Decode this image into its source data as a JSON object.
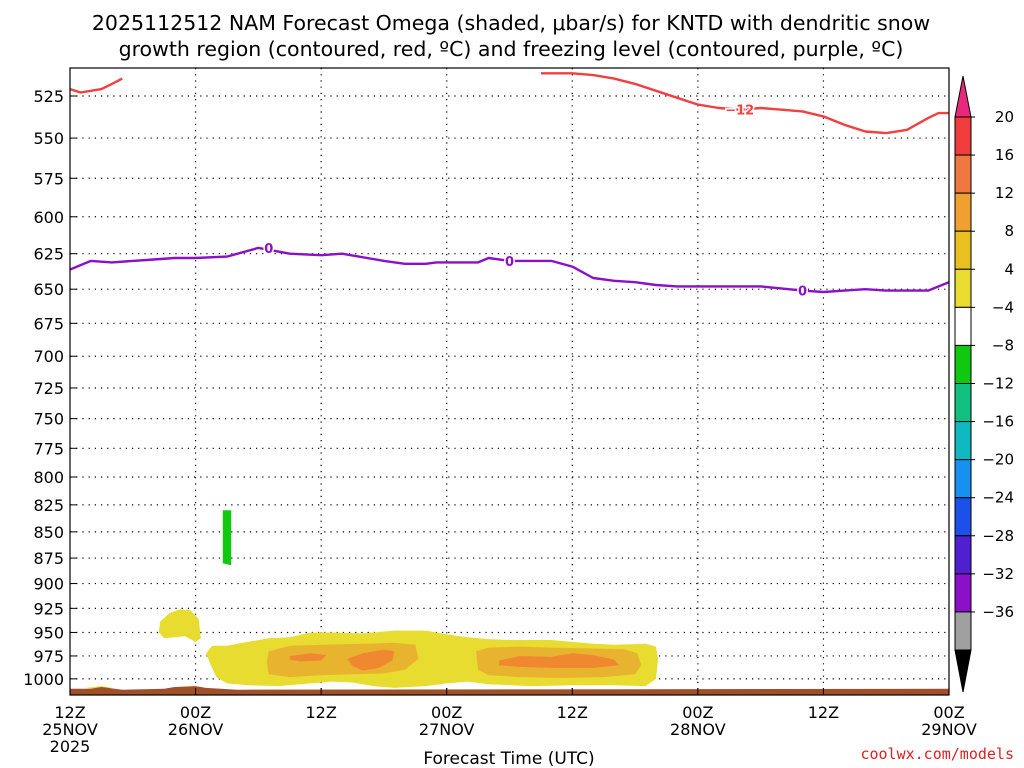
{
  "chart_data": {
    "type": "heatmap",
    "title_line1": "2025112512 NAM Forecast Omega (shaded, μbar/s) for KNTD with dendritic snow",
    "title_line2": "growth region (contoured, red, ºC) and freezing level (contoured, purple, ºC)",
    "xlabel": "Forecast Time (UTC)",
    "ylabel": "",
    "credit": "coolwx.com/models",
    "yaxis": {
      "scale": "log",
      "inverted": true,
      "range_hPa": [
        509,
        1018
      ]
    },
    "yticks": [
      525,
      550,
      575,
      600,
      625,
      650,
      675,
      700,
      725,
      750,
      775,
      800,
      825,
      850,
      875,
      900,
      925,
      950,
      975,
      1000
    ],
    "xaxis": {
      "range_hours": [
        0,
        84
      ]
    },
    "xticks": [
      {
        "hour": 0,
        "lines": [
          "12Z",
          "25NOV",
          "2025"
        ]
      },
      {
        "hour": 12,
        "lines": [
          "00Z",
          "26NOV"
        ]
      },
      {
        "hour": 24,
        "lines": [
          "12Z"
        ]
      },
      {
        "hour": 36,
        "lines": [
          "00Z",
          "27NOV"
        ]
      },
      {
        "hour": 48,
        "lines": [
          "12Z"
        ]
      },
      {
        "hour": 60,
        "lines": [
          "00Z",
          "28NOV"
        ]
      },
      {
        "hour": 72,
        "lines": [
          "12Z"
        ]
      },
      {
        "hour": 84,
        "lines": [
          "00Z",
          "29NOV"
        ]
      }
    ],
    "grid": true,
    "colorbar": {
      "levels": [
        "20",
        "16",
        "12",
        "8",
        "4",
        "−4",
        "−8",
        "−12",
        "−16",
        "−20",
        "−24",
        "−28",
        "−32",
        "−36"
      ],
      "top_arrow_color": "#e8287c",
      "bottom_arrow_color": "#000000",
      "bins": [
        "#f03c3c",
        "#f07840",
        "#f0a030",
        "#e8c020",
        "#e8dc30",
        "#ffffff",
        "#10c810",
        "#10c080",
        "#10b8c0",
        "#1890f0",
        "#1c50e8",
        "#5020d0",
        "#8c10c8",
        "#a0a0a0"
      ]
    },
    "red_isotherm": {
      "label": "−12",
      "color": "#f04040",
      "segments": [
        [
          [
            0,
            521
          ],
          [
            1,
            523
          ],
          [
            2,
            522
          ],
          [
            3,
            521
          ],
          [
            4,
            518
          ],
          [
            5,
            515
          ]
        ],
        [
          [
            45,
            512
          ],
          [
            46,
            512
          ],
          [
            48,
            512
          ],
          [
            50,
            513
          ],
          [
            52,
            515
          ],
          [
            54,
            518
          ],
          [
            56,
            522
          ],
          [
            58,
            526
          ],
          [
            60,
            530
          ],
          [
            62,
            532
          ],
          [
            64,
            533
          ],
          [
            66,
            532
          ],
          [
            68,
            533
          ],
          [
            70,
            534
          ],
          [
            72,
            537
          ],
          [
            74,
            542
          ],
          [
            76,
            546
          ],
          [
            78,
            547
          ],
          [
            80,
            545
          ],
          [
            82,
            538
          ],
          [
            83,
            535
          ],
          [
            84,
            535
          ]
        ]
      ]
    },
    "freezing_level": {
      "label": "0",
      "color": "#8c10c8",
      "points": [
        [
          0,
          636
        ],
        [
          2,
          630
        ],
        [
          4,
          631
        ],
        [
          6,
          630
        ],
        [
          8,
          629
        ],
        [
          10,
          628
        ],
        [
          12,
          628
        ],
        [
          15,
          627
        ],
        [
          18,
          621
        ],
        [
          21,
          625
        ],
        [
          24,
          626
        ],
        [
          26,
          625
        ],
        [
          30,
          630
        ],
        [
          32,
          632
        ],
        [
          34,
          632
        ],
        [
          35,
          631
        ],
        [
          37,
          631
        ],
        [
          39,
          631
        ],
        [
          40,
          628
        ],
        [
          42,
          630
        ],
        [
          44,
          630
        ],
        [
          46,
          630
        ],
        [
          48,
          634
        ],
        [
          50,
          642
        ],
        [
          52,
          644
        ],
        [
          54,
          645
        ],
        [
          56,
          647
        ],
        [
          58,
          648
        ],
        [
          62,
          648
        ],
        [
          64,
          648
        ],
        [
          66,
          648
        ],
        [
          70,
          651
        ],
        [
          72,
          652
        ],
        [
          74,
          651
        ],
        [
          76,
          650
        ],
        [
          78,
          651
        ],
        [
          80,
          651
        ],
        [
          82,
          651
        ],
        [
          84,
          645
        ]
      ]
    },
    "shaded_regions": [
      {
        "level_min": 4,
        "level_max": 8,
        "color": "#e8dc30",
        "polygon": [
          [
            8.6,
            939
          ],
          [
            9.5,
            930
          ],
          [
            10.5,
            926
          ],
          [
            11.5,
            927
          ],
          [
            12.3,
            936
          ],
          [
            12.5,
            956
          ],
          [
            12,
            960
          ],
          [
            11,
            954
          ],
          [
            9,
            956
          ],
          [
            8.5,
            950
          ]
        ]
      },
      {
        "level_min": 4,
        "level_max": 8,
        "color": "#e8dc30",
        "polygon": [
          [
            13,
            972
          ],
          [
            13.6,
            964
          ],
          [
            15,
            964
          ],
          [
            17,
            960
          ],
          [
            19,
            956
          ],
          [
            21,
            955
          ],
          [
            23,
            950
          ],
          [
            25,
            950
          ],
          [
            28,
            951
          ],
          [
            31,
            948
          ],
          [
            34,
            948
          ],
          [
            36,
            952
          ],
          [
            38,
            955
          ],
          [
            40,
            957
          ],
          [
            42,
            958
          ],
          [
            44,
            958
          ],
          [
            46,
            958
          ],
          [
            48,
            960
          ],
          [
            50,
            962
          ],
          [
            52,
            963
          ],
          [
            55,
            962
          ],
          [
            56,
            965
          ],
          [
            56.2,
            978
          ],
          [
            56,
            1000
          ],
          [
            55,
            1008
          ],
          [
            52,
            1007
          ],
          [
            48,
            1007
          ],
          [
            44,
            1008
          ],
          [
            40,
            1006
          ],
          [
            38,
            1003
          ],
          [
            36,
            1005
          ],
          [
            34,
            1008
          ],
          [
            31,
            1010
          ],
          [
            29,
            1008
          ],
          [
            27,
            1004
          ],
          [
            25,
            1003
          ],
          [
            22,
            1006
          ],
          [
            20,
            1008
          ],
          [
            17,
            1007
          ],
          [
            15,
            1005
          ],
          [
            14,
            998
          ],
          [
            13.5,
            986
          ]
        ]
      },
      {
        "level_min": 4,
        "level_max": 8,
        "color": "#e8dc30",
        "polygon": [
          [
            1.5,
            1010
          ],
          [
            3,
            1008
          ],
          [
            4,
            1010
          ],
          [
            2,
            1011
          ]
        ]
      },
      {
        "level_min": 8,
        "level_max": 12,
        "color": "#e8b430",
        "polygon": [
          [
            19,
            970
          ],
          [
            21,
            964
          ],
          [
            24,
            963
          ],
          [
            28,
            962
          ],
          [
            31,
            961
          ],
          [
            33,
            963
          ],
          [
            33.3,
            978
          ],
          [
            32,
            990
          ],
          [
            30,
            994
          ],
          [
            27,
            995
          ],
          [
            24,
            996
          ],
          [
            21,
            998
          ],
          [
            19,
            995
          ],
          [
            18.8,
            982
          ]
        ]
      },
      {
        "level_min": 8,
        "level_max": 12,
        "color": "#e8b430",
        "polygon": [
          [
            38.8,
            970
          ],
          [
            40,
            966
          ],
          [
            43,
            965
          ],
          [
            46,
            966
          ],
          [
            50,
            967
          ],
          [
            53,
            968
          ],
          [
            54.2,
            972
          ],
          [
            54.6,
            985
          ],
          [
            54,
            995
          ],
          [
            51,
            998
          ],
          [
            47,
            999
          ],
          [
            43,
            998
          ],
          [
            40,
            996
          ],
          [
            39,
            990
          ]
        ]
      },
      {
        "level_min": 12,
        "level_max": 16,
        "color": "#f08830",
        "polygon": [
          [
            21,
            975
          ],
          [
            23,
            972
          ],
          [
            24.5,
            974
          ],
          [
            24,
            980
          ],
          [
            22,
            981
          ],
          [
            21,
            979
          ]
        ]
      },
      {
        "level_min": 12,
        "level_max": 16,
        "color": "#f08830",
        "polygon": [
          [
            26.5,
            978
          ],
          [
            28,
            972
          ],
          [
            30,
            968
          ],
          [
            31,
            970
          ],
          [
            30.8,
            980
          ],
          [
            29.5,
            988
          ],
          [
            28,
            991
          ],
          [
            27,
            986
          ]
        ]
      },
      {
        "level_min": 12,
        "level_max": 16,
        "color": "#f08830",
        "polygon": [
          [
            41,
            980
          ],
          [
            43,
            975
          ],
          [
            46,
            976
          ],
          [
            48,
            972
          ],
          [
            50,
            974
          ],
          [
            52,
            979
          ],
          [
            52.5,
            985
          ],
          [
            50,
            988
          ],
          [
            46,
            988
          ],
          [
            43,
            987
          ],
          [
            41,
            985
          ]
        ]
      },
      {
        "level_min": -8,
        "level_max": -4,
        "color": "#10c810",
        "polygon": [
          [
            14.6,
            830
          ],
          [
            15.4,
            830
          ],
          [
            15.4,
            882
          ],
          [
            14.6,
            880
          ]
        ]
      }
    ],
    "surface_band": {
      "color": "#a05028",
      "top_pressure": [
        [
          0,
          1011
        ],
        [
          2,
          1011
        ],
        [
          3,
          1009
        ],
        [
          5,
          1012
        ],
        [
          9,
          1011
        ],
        [
          10,
          1009
        ],
        [
          12,
          1008
        ],
        [
          13,
          1010
        ],
        [
          16,
          1012
        ],
        [
          84,
          1011
        ]
      ],
      "bottom_pressure": 1018
    }
  }
}
